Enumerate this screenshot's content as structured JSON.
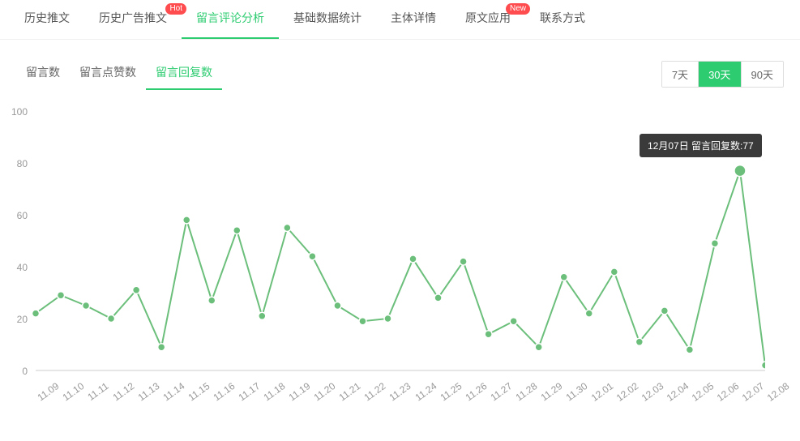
{
  "topTabs": [
    {
      "label": "历史推文",
      "active": false,
      "badge": null
    },
    {
      "label": "历史广告推文",
      "active": false,
      "badge": "Hot"
    },
    {
      "label": "留言评论分析",
      "active": true,
      "badge": null
    },
    {
      "label": "基础数据统计",
      "active": false,
      "badge": null
    },
    {
      "label": "主体详情",
      "active": false,
      "badge": null
    },
    {
      "label": "原文应用",
      "active": false,
      "badge": "New"
    },
    {
      "label": "联系方式",
      "active": false,
      "badge": null
    }
  ],
  "metricTabs": [
    {
      "label": "留言数",
      "active": false
    },
    {
      "label": "留言点赞数",
      "active": false
    },
    {
      "label": "留言回复数",
      "active": true
    }
  ],
  "rangeButtons": [
    {
      "label": "7天",
      "active": false
    },
    {
      "label": "30天",
      "active": true
    },
    {
      "label": "90天",
      "active": false
    }
  ],
  "tooltip": {
    "text": "12月07日 留言回复数:77",
    "background": "#3a3a3a",
    "textColor": "#ffffff",
    "fontSize": 12
  },
  "chart": {
    "type": "line",
    "widthPx": 940,
    "heightPx": 340,
    "plotLeft": 40,
    "plotRight": 940,
    "plotTop": 10,
    "plotBottom": 330,
    "ylim": [
      0,
      100
    ],
    "ytick_step": 20,
    "yticks": [
      0,
      20,
      40,
      60,
      80,
      100
    ],
    "ylabel_fontsize": 12,
    "xlabel_fontsize": 12,
    "xlabel_rotation": -36,
    "background_color": "#ffffff",
    "grid_color": "#eeeeee",
    "axis_color": "#cccccc",
    "label_color": "#999999",
    "line_color": "#6bbf7b",
    "line_width": 2,
    "marker_style": "circle",
    "marker_radius": 4.5,
    "marker_fill": "#6bbf7b",
    "marker_stroke": "#ffffff",
    "marker_stroke_width": 1.5,
    "highlight_marker_radius": 7,
    "highlight_marker_fill": "#6bbf7b",
    "highlight_marker_stroke": "#ffffff",
    "categories": [
      "11.09",
      "11.10",
      "11.11",
      "11.12",
      "11.13",
      "11.14",
      "11.15",
      "11.16",
      "11.17",
      "11.18",
      "11.19",
      "11.20",
      "11.21",
      "11.22",
      "11.23",
      "11.24",
      "11.25",
      "11.26",
      "11.27",
      "11.28",
      "11.29",
      "11.30",
      "12.01",
      "12.02",
      "12.03",
      "12.04",
      "12.05",
      "12.06",
      "12.07",
      "12.08"
    ],
    "values": [
      22,
      29,
      25,
      20,
      31,
      9,
      58,
      27,
      54,
      21,
      55,
      44,
      25,
      19,
      20,
      43,
      28,
      42,
      14,
      19,
      9,
      36,
      22,
      38,
      11,
      23,
      8,
      49,
      77,
      2
    ],
    "highlight_index": 28
  }
}
